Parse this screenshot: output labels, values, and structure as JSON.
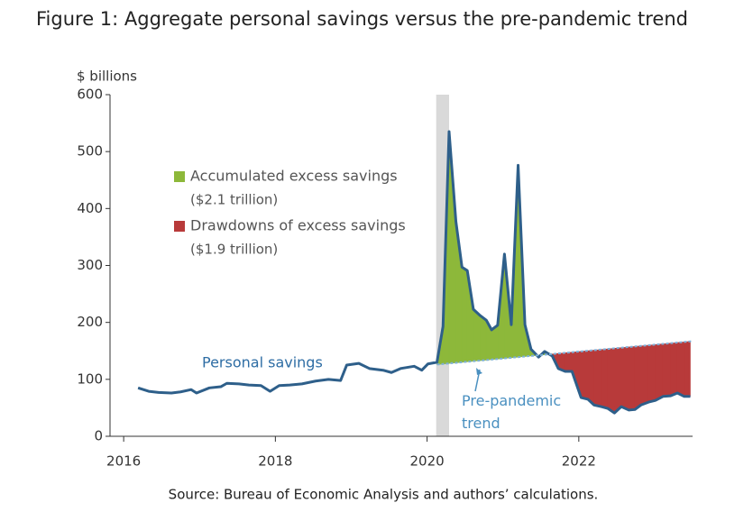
{
  "chart_data": {
    "type": "line",
    "title": "Figure 1: Aggregate personal savings versus the pre-pandemic trend",
    "y_axis_label": "$ billions",
    "source": "Source: Bureau of Economic Analysis and authors’ calculations.",
    "xlim": [
      2015.82,
      2023.5
    ],
    "xticks": [
      2016,
      2018,
      2020,
      2022
    ],
    "ylim": [
      0,
      600
    ],
    "yticks": [
      0,
      100,
      200,
      300,
      400,
      500,
      600
    ],
    "grid": false,
    "recession": [
      2020.12,
      2020.29
    ],
    "series": [
      {
        "name": "Personal savings",
        "color": "#2e5f8a",
        "x": [
          2016.19,
          2016.33,
          2016.46,
          2016.63,
          2016.75,
          2016.89,
          2016.96,
          2017.13,
          2017.28,
          2017.36,
          2017.52,
          2017.65,
          2017.81,
          2017.93,
          2018.05,
          2018.19,
          2018.35,
          2018.53,
          2018.7,
          2018.86,
          2018.94,
          2019.1,
          2019.24,
          2019.42,
          2019.53,
          2019.65,
          2019.83,
          2019.93,
          2020.01,
          2020.13,
          2020.21,
          2020.29,
          2020.38,
          2020.46,
          2020.53,
          2020.61,
          2020.7,
          2020.78,
          2020.85,
          2020.93,
          2021.02,
          2021.11,
          2021.2,
          2021.29,
          2021.37,
          2021.47,
          2021.55,
          2021.65,
          2021.73,
          2021.82,
          2021.91,
          2022.03,
          2022.12,
          2022.2,
          2022.3,
          2022.38,
          2022.47,
          2022.56,
          2022.66,
          2022.74,
          2022.82,
          2022.92,
          2023.01,
          2023.11,
          2023.21,
          2023.3,
          2023.39,
          2023.47
        ],
        "values": [
          85,
          79,
          77,
          76,
          78,
          82,
          76,
          85,
          87,
          93,
          92,
          90,
          89,
          79,
          89,
          90,
          92,
          97,
          100,
          98,
          125,
          128,
          119,
          116,
          112,
          119,
          123,
          116,
          127,
          130,
          193,
          535,
          377,
          297,
          291,
          223,
          212,
          204,
          187,
          195,
          320,
          196,
          476,
          196,
          153,
          139,
          149,
          141,
          119,
          114,
          114,
          68,
          65,
          55,
          52,
          49,
          41,
          52,
          46,
          47,
          55,
          60,
          63,
          70,
          71,
          76,
          70,
          70
        ]
      },
      {
        "name": "Pre-pandemic trend",
        "color": "#7fb0d8",
        "dashed": true,
        "x": [
          2020.13,
          2023.5
        ],
        "values": [
          126,
          167
        ]
      }
    ],
    "legend": [
      {
        "label": "Accumulated excess savings",
        "note": "($2.1 trillion)",
        "color": "#8db83a"
      },
      {
        "label": "Drawdowns of excess savings",
        "note": "($1.9 trillion)",
        "color": "#b83a3a"
      }
    ]
  }
}
